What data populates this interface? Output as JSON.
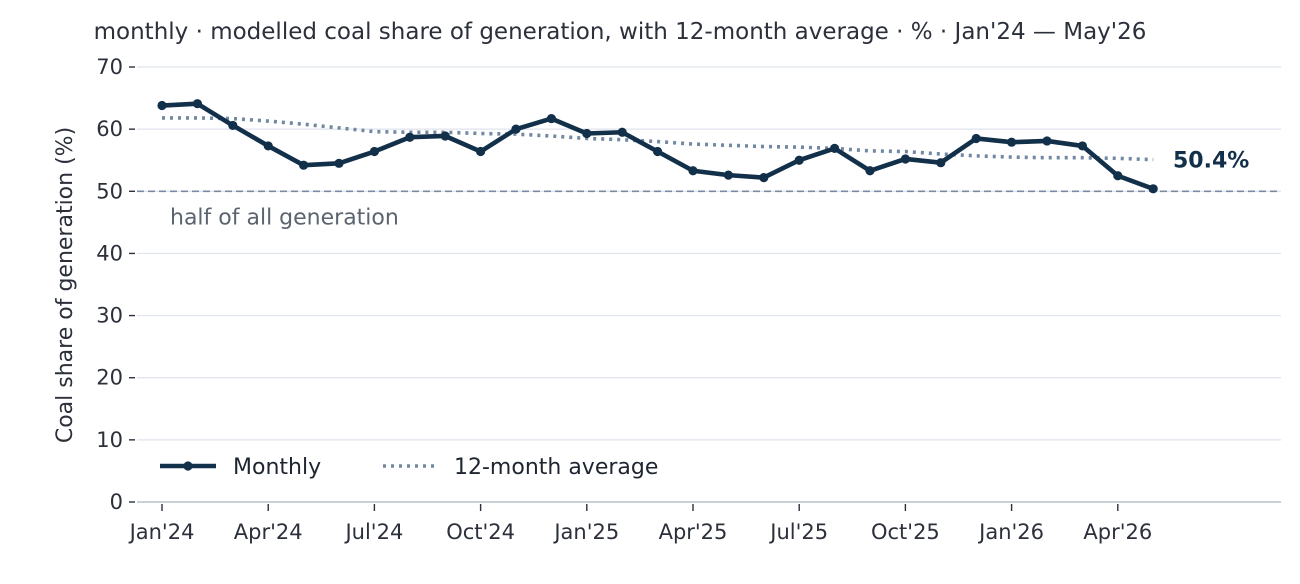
{
  "chart_data": {
    "type": "line",
    "title": "monthly · modelled coal share of generation, with 12-month average · % · Jan'24 — May'26",
    "ylabel": "Coal share of generation (%)",
    "xlabel": "",
    "ylim": [
      0,
      70
    ],
    "yticks": [
      0,
      10,
      20,
      30,
      40,
      50,
      60,
      70
    ],
    "x_tick_labels": [
      "Jan'24",
      "Apr'24",
      "Jul'24",
      "Oct'24",
      "Jan'25",
      "Apr'25",
      "Jul'25",
      "Oct'25",
      "Jan'26",
      "Apr'26"
    ],
    "x": [
      "Jan'24",
      "Feb'24",
      "Mar'24",
      "Apr'24",
      "May'24",
      "Jun'24",
      "Jul'24",
      "Aug'24",
      "Sep'24",
      "Oct'24",
      "Nov'24",
      "Dec'24",
      "Jan'25",
      "Feb'25",
      "Mar'25",
      "Apr'25",
      "May'25",
      "Jun'25",
      "Jul'25",
      "Aug'25",
      "Sep'25",
      "Oct'25",
      "Nov'25",
      "Dec'25",
      "Jan'26",
      "Feb'26",
      "Mar'26",
      "Apr'26",
      "May'26"
    ],
    "series": [
      {
        "name": "Monthly",
        "style": "solid-markers",
        "color": "#13304a",
        "values": [
          63.8,
          64.1,
          60.6,
          57.3,
          54.2,
          54.5,
          56.4,
          58.7,
          58.9,
          56.4,
          60.0,
          61.7,
          59.3,
          59.5,
          56.4,
          53.3,
          52.6,
          52.2,
          55.0,
          56.9,
          53.3,
          55.2,
          54.6,
          58.5,
          57.9,
          58.1,
          57.3,
          52.5,
          50.4
        ]
      },
      {
        "name": "12-month average",
        "style": "dotted",
        "color": "#7287a2",
        "values": [
          61.8,
          61.8,
          61.7,
          61.3,
          60.8,
          60.2,
          59.6,
          59.5,
          59.5,
          59.3,
          59.2,
          58.9,
          58.5,
          58.3,
          58.0,
          57.6,
          57.4,
          57.2,
          57.1,
          56.9,
          56.5,
          56.4,
          56.0,
          55.7,
          55.5,
          55.4,
          55.4,
          55.3,
          55.1
        ]
      }
    ],
    "reference_line": {
      "value": 50,
      "label": "half of all generation",
      "color": "#7a8aa0"
    },
    "end_label": "50.4%",
    "legend": {
      "placement": "bottom-left",
      "entries": [
        "Monthly",
        "12-month average"
      ]
    },
    "grid": "horizontal"
  }
}
